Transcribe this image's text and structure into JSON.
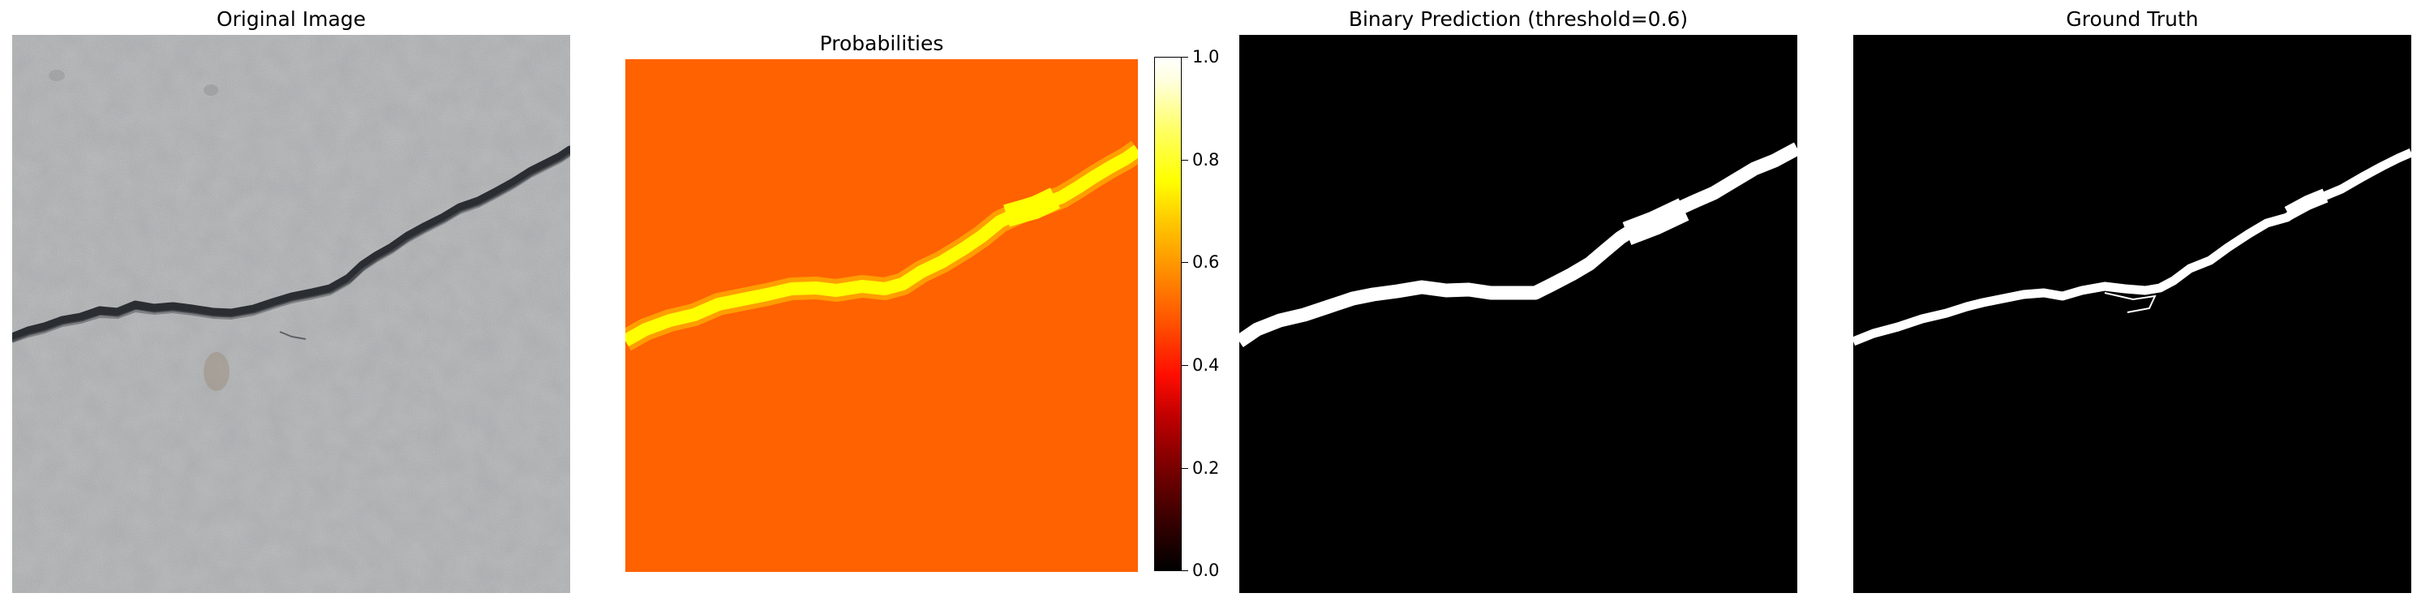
{
  "panels": [
    {
      "title": "Original Image"
    },
    {
      "title": "Probabilities"
    },
    {
      "title": "Binary Prediction (threshold=0.6)"
    },
    {
      "title": "Ground Truth"
    }
  ],
  "colorbar": {
    "tick_labels": [
      "1.0",
      "0.8",
      "0.6",
      "0.4",
      "0.2",
      "0.0"
    ],
    "colormap": "hot",
    "colors": {
      "background_probability": "#ff6200",
      "crack_probability": "#ffff00"
    }
  },
  "colors": {
    "mask_background": "#000000",
    "mask_foreground": "#ffffff",
    "concrete": "#c2c4c5",
    "crack": "#2a2e33"
  }
}
